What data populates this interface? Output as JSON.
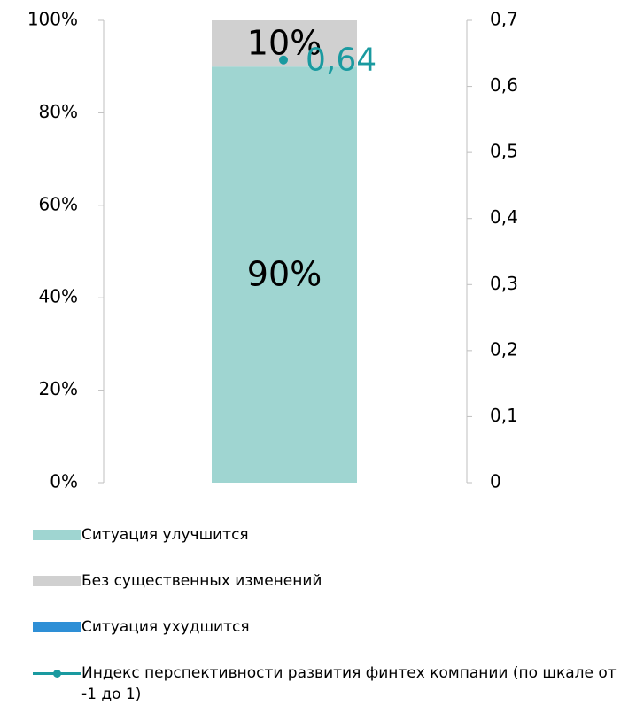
{
  "chart_data": {
    "type": "bar",
    "stacked": true,
    "categories": [
      null
    ],
    "series": [
      {
        "name": "Ситуация улучшится",
        "color": "#9fd5d1",
        "values": [
          90
        ],
        "value_labels": [
          "90%"
        ]
      },
      {
        "name": "Без существенных изменений",
        "color": "#d0d0d0",
        "values": [
          10
        ],
        "value_labels": [
          "10%"
        ]
      },
      {
        "name": "Ситуация ухудшится",
        "color": "#2e8fd6",
        "values": [
          0
        ]
      },
      {
        "name": "Индекс перспективности развития финтех компании (по шкале от -1 до 1)",
        "type": "line",
        "axis": "y2",
        "color": "#1a9aa0",
        "values": [
          0.64
        ],
        "value_labels": [
          "0,64"
        ]
      }
    ],
    "ylim": [
      0,
      100
    ],
    "yticks": [
      {
        "value": 0,
        "label": "0%"
      },
      {
        "value": 20,
        "label": "20%"
      },
      {
        "value": 40,
        "label": "40%"
      },
      {
        "value": 60,
        "label": "60%"
      },
      {
        "value": 80,
        "label": "80%"
      },
      {
        "value": 100,
        "label": "100%"
      }
    ],
    "y2lim": [
      0,
      0.7
    ],
    "y2ticks": [
      0,
      {
        "value": 0.1,
        "label": "0,1"
      },
      {
        "value": 0.2,
        "label": "0,2"
      },
      {
        "value": 0.3,
        "label": "0,3"
      },
      {
        "value": 0.4,
        "label": "0,4"
      },
      {
        "value": 0.5,
        "label": "0,5"
      },
      {
        "value": 0.6,
        "label": "0,6"
      },
      {
        "value": 0.7,
        "label": "0,7"
      }
    ],
    "grid": false,
    "legend": "bottom"
  }
}
